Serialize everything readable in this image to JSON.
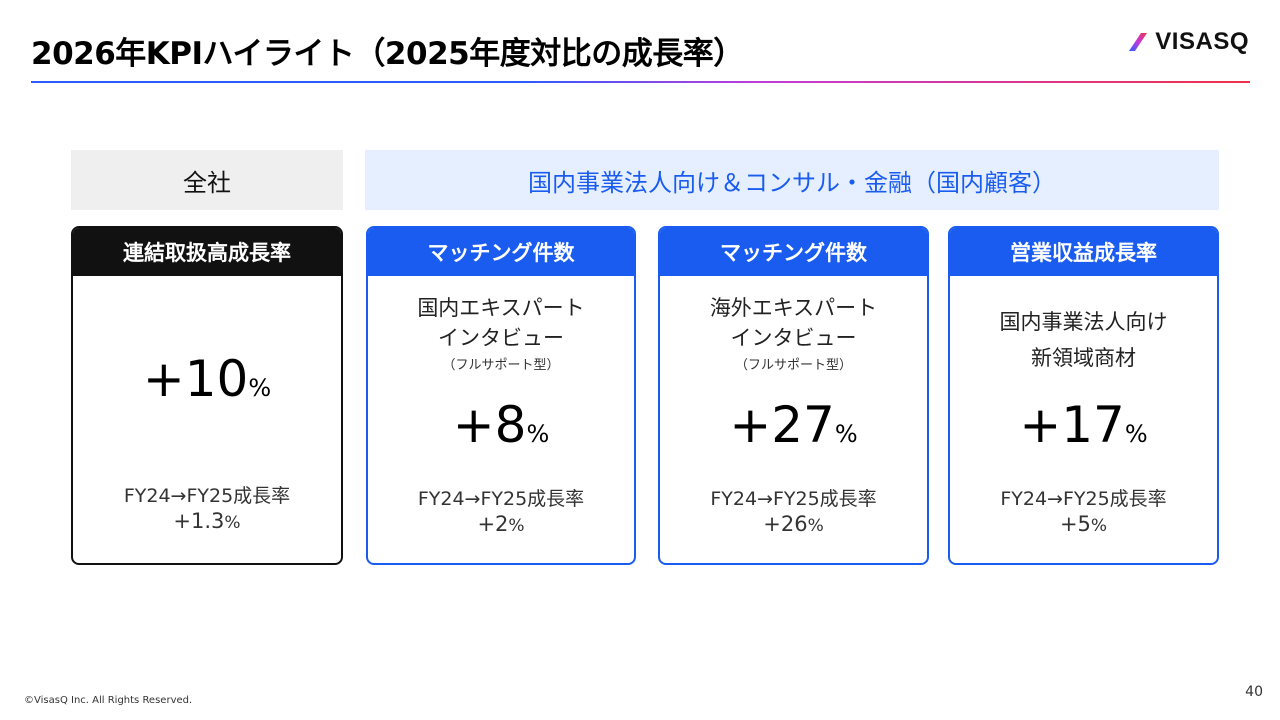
{
  "slide": {
    "title": "2026年KPIハイライト（2025年度対比の成長率）",
    "logo_text": "VISASQ",
    "copyright": "©VisasQ Inc. All Rights Reserved.",
    "page_number": "40"
  },
  "headers": {
    "all": "全社",
    "domestic": "国内事業法人向け＆コンサル・金融（国内顧客）"
  },
  "cards": [
    {
      "head": "連結取扱高成長率",
      "sub1": "",
      "sub2": "",
      "value": "+10",
      "unit": "%",
      "foot_label": "FY24→FY25成長率",
      "foot_value": "+1.3",
      "foot_unit": "%"
    },
    {
      "head": "マッチング件数",
      "sub1": "国内エキスパート\nインタビュー",
      "sub2": "（フルサポート型）",
      "value": "+8",
      "unit": "%",
      "foot_label": "FY24→FY25成長率",
      "foot_value": "+2",
      "foot_unit": "%"
    },
    {
      "head": "マッチング件数",
      "sub1": "海外エキスパート\nインタビュー",
      "sub2": "（フルサポート型）",
      "value": "+27",
      "unit": "%",
      "foot_label": "FY24→FY25成長率",
      "foot_value": "+26",
      "foot_unit": "%"
    },
    {
      "head": "営業収益成長率",
      "sub1": "国内事業法人向け\n新領域商材",
      "sub2": "",
      "value": "+17",
      "unit": "%",
      "foot_label": "FY24→FY25成長率",
      "foot_value": "+5",
      "foot_unit": "%"
    }
  ],
  "colors": {
    "accent_blue": "#1a5cf0",
    "light_blue_bg": "#e6efff",
    "gray_bg": "#efefef",
    "black": "#111111"
  }
}
